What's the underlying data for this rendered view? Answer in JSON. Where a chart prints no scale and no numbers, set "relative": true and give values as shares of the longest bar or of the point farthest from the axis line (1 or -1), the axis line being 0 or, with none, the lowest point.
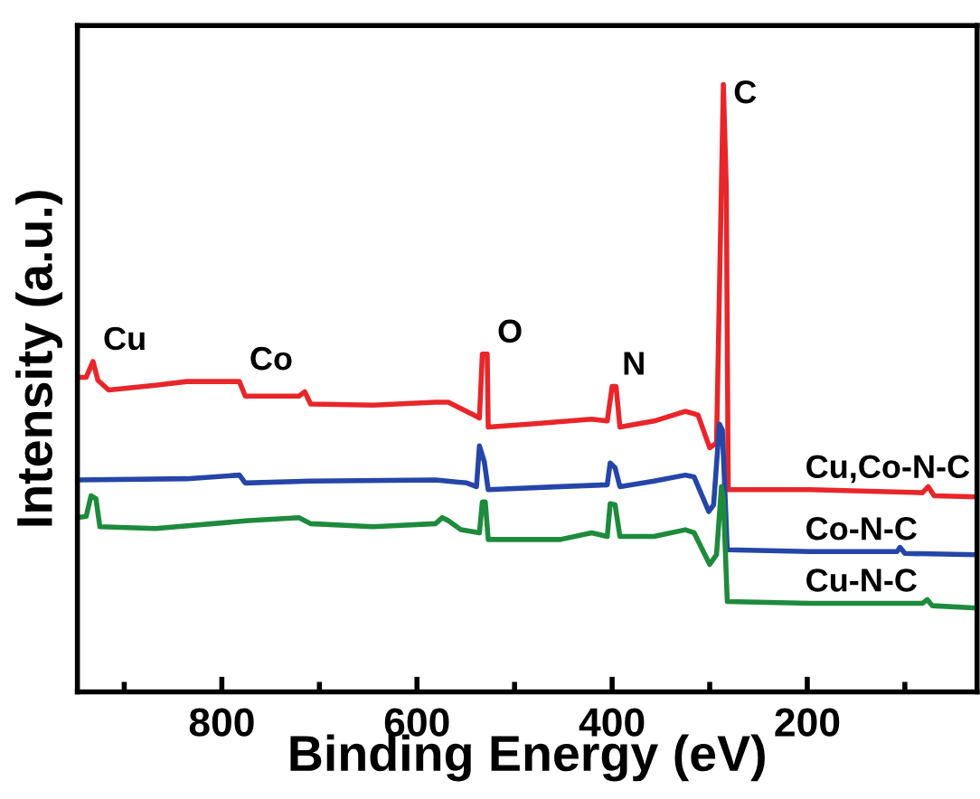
{
  "chart_data": {
    "type": "line",
    "relative": true,
    "xlabel": "Binding Energy (eV)",
    "ylabel": "Intensity (a.u.)",
    "xlim": [
      948,
      26
    ],
    "xticks": [
      {
        "value": 900,
        "label": null
      },
      800,
      {
        "value": 700,
        "label": null
      },
      600,
      {
        "value": 500,
        "label": null
      },
      400,
      {
        "value": 300,
        "label": null
      },
      200,
      {
        "value": 100,
        "label": null
      }
    ],
    "grid": false,
    "legend": false,
    "marker": "none",
    "line_style": "solid",
    "series": [
      {
        "name": "Cu,Co-N-C",
        "color": "#e8262a",
        "x": [
          948,
          939,
          932,
          927,
          916,
          868,
          836,
          782,
          776,
          721,
          715,
          709,
          645,
          581,
          568,
          542,
          536,
          533,
          528,
          527,
          485,
          421,
          405,
          400,
          396,
          392,
          357,
          325,
          312,
          300,
          293,
          288,
          286,
          283,
          281,
          197,
          82,
          76,
          70,
          26
        ],
        "values": [
          0.518,
          0.518,
          0.544,
          0.513,
          0.497,
          0.505,
          0.511,
          0.511,
          0.487,
          0.487,
          0.494,
          0.474,
          0.472,
          0.477,
          0.477,
          0.456,
          0.451,
          0.556,
          0.556,
          0.436,
          0.441,
          0.449,
          0.446,
          0.503,
          0.503,
          0.436,
          0.446,
          0.462,
          0.456,
          0.402,
          0.41,
          0.831,
          1.0,
          0.831,
          0.333,
          0.333,
          0.328,
          0.338,
          0.323,
          0.321
        ]
      },
      {
        "name": "Co-N-C",
        "color": "#2546a8",
        "x": [
          948,
          836,
          782,
          776,
          709,
          581,
          549,
          539,
          536,
          531,
          527,
          453,
          405,
          402,
          397,
          392,
          357,
          325,
          316,
          301,
          296,
          290,
          287,
          282,
          197,
          108,
          105,
          100,
          26
        ],
        "values": [
          0.349,
          0.351,
          0.357,
          0.344,
          0.347,
          0.349,
          0.344,
          0.338,
          0.405,
          0.379,
          0.333,
          0.338,
          0.341,
          0.377,
          0.369,
          0.338,
          0.347,
          0.357,
          0.354,
          0.297,
          0.308,
          0.441,
          0.431,
          0.234,
          0.231,
          0.231,
          0.238,
          0.228,
          0.226
        ]
      },
      {
        "name": "Cu-N-C",
        "color": "#1e8a3c",
        "x": [
          948,
          939,
          934,
          929,
          925,
          868,
          773,
          721,
          709,
          645,
          581,
          574,
          568,
          555,
          536,
          533,
          530,
          527,
          453,
          421,
          405,
          402,
          397,
          392,
          357,
          325,
          316,
          300,
          293,
          288,
          286,
          282,
          197,
          82,
          77,
          72,
          26
        ],
        "values": [
          0.287,
          0.289,
          0.323,
          0.318,
          0.272,
          0.269,
          0.282,
          0.287,
          0.277,
          0.272,
          0.277,
          0.287,
          0.282,
          0.267,
          0.262,
          0.313,
          0.313,
          0.251,
          0.251,
          0.262,
          0.256,
          0.31,
          0.308,
          0.256,
          0.256,
          0.267,
          0.262,
          0.21,
          0.226,
          0.338,
          0.318,
          0.149,
          0.146,
          0.146,
          0.152,
          0.142,
          0.138
        ]
      }
    ],
    "annotations": [
      {
        "text": "Cu",
        "x": 932,
        "y": 0.544
      },
      {
        "text": "Co",
        "x": 782,
        "y": 0.511
      },
      {
        "text": "O",
        "x": 528,
        "y": 0.556
      },
      {
        "text": "N",
        "x": 400,
        "y": 0.503
      },
      {
        "text": "C",
        "x": 286,
        "y": 1.0
      }
    ]
  }
}
